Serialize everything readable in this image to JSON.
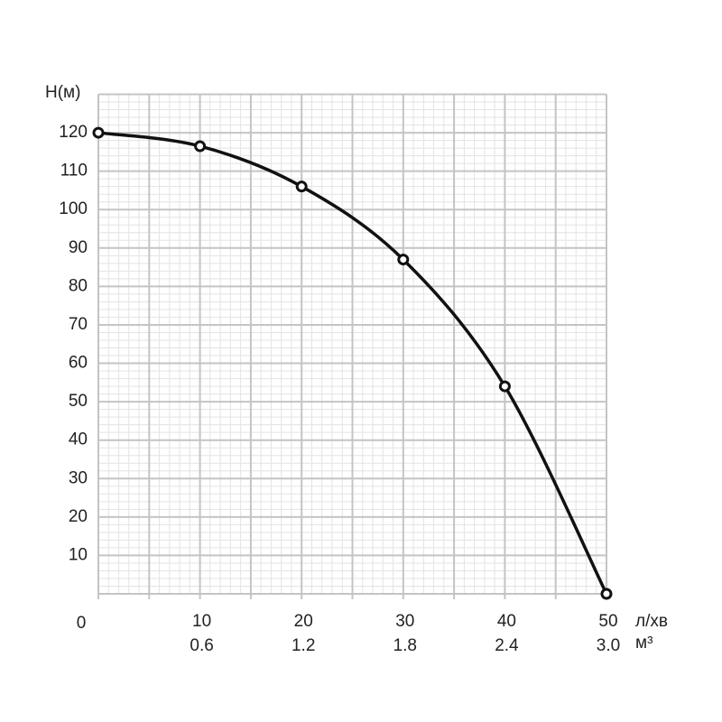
{
  "chart_data": {
    "type": "line",
    "y_label": "H(м)",
    "x_label": "л/хв",
    "x2_label": "м³",
    "x": [
      0,
      10,
      20,
      30,
      40,
      50
    ],
    "series": [
      {
        "name": "H",
        "color": "#111111",
        "values": [
          120,
          116.5,
          106,
          87,
          54,
          0
        ]
      }
    ],
    "xlim": [
      0,
      50
    ],
    "ylim": [
      0,
      130
    ],
    "xticks": [
      0,
      10,
      20,
      30,
      40,
      50
    ],
    "x2ticks": [
      {
        "value": 10,
        "label": "0.6"
      },
      {
        "value": 20,
        "label": "1.2"
      },
      {
        "value": 30,
        "label": "1.8"
      },
      {
        "value": 40,
        "label": "2.4"
      },
      {
        "value": 50,
        "label": "3.0"
      }
    ],
    "yticks": [
      10,
      20,
      30,
      40,
      50,
      60,
      70,
      80,
      90,
      100,
      110,
      120
    ],
    "grid": true
  }
}
